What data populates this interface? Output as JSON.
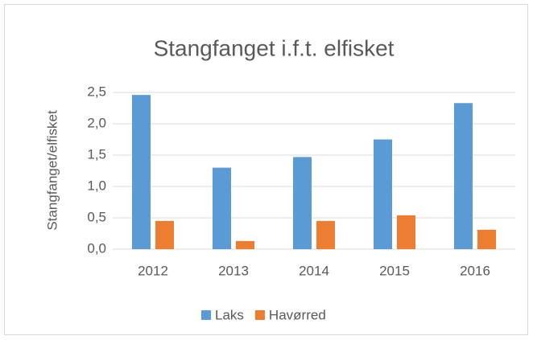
{
  "chart_data": {
    "type": "bar",
    "title": "Stangfanget i.f.t. elfisket",
    "y_label": "Stangfanget/elfisket",
    "categories": [
      "2012",
      "2013",
      "2014",
      "2015",
      "2016"
    ],
    "series": [
      {
        "name": "Laks",
        "color": "#5b9bd5",
        "values": [
          2.46,
          1.3,
          1.47,
          1.75,
          2.33
        ]
      },
      {
        "name": "Havørred",
        "color": "#ed7d31",
        "values": [
          0.45,
          0.13,
          0.45,
          0.54,
          0.31
        ]
      }
    ],
    "ylim": [
      0,
      2.5
    ],
    "yticks": [
      {
        "value": 0,
        "label": "0,0"
      },
      {
        "value": 0.5,
        "label": "0,5"
      },
      {
        "value": 1,
        "label": "1,0"
      },
      {
        "value": 1.5,
        "label": "1,5"
      },
      {
        "value": 2,
        "label": "2,0"
      },
      {
        "value": 2.5,
        "label": "2,5"
      }
    ],
    "grid": true,
    "legend": "bottom"
  }
}
